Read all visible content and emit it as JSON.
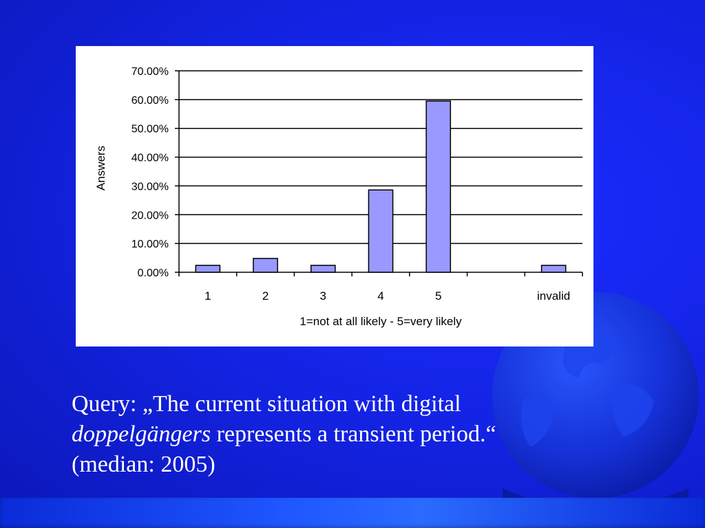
{
  "colors": {
    "background": "#1424e6",
    "bar_fill": "#9999ff",
    "bar_stroke": "#000000",
    "caption_text": "#ffffff",
    "chart_panel": "#ffffff"
  },
  "decor": {
    "globe_icon": "globe-icon"
  },
  "chart_data": {
    "type": "bar",
    "categories": [
      "1",
      "2",
      "3",
      "4",
      "5",
      "",
      "invalid"
    ],
    "values": [
      2.4,
      4.8,
      2.4,
      28.6,
      59.5,
      0,
      2.4
    ],
    "title": "",
    "xlabel": "1=not at all likely - 5=very likely",
    "ylabel": "Answers",
    "ylim": [
      0,
      70
    ],
    "yticks": [
      0,
      10,
      20,
      30,
      40,
      50,
      60,
      70
    ],
    "ytick_labels": [
      "0.00%",
      "10.00%",
      "20.00%",
      "30.00%",
      "40.00%",
      "50.00%",
      "60.00%",
      "70.00%"
    ],
    "grid": true,
    "legend": "none"
  },
  "caption": {
    "line1": "Query: „The current situation with digital",
    "line2_italic": "doppelgängers",
    "line2_rest": " represents a transient period.“",
    "line3": "(median: 2005)"
  }
}
